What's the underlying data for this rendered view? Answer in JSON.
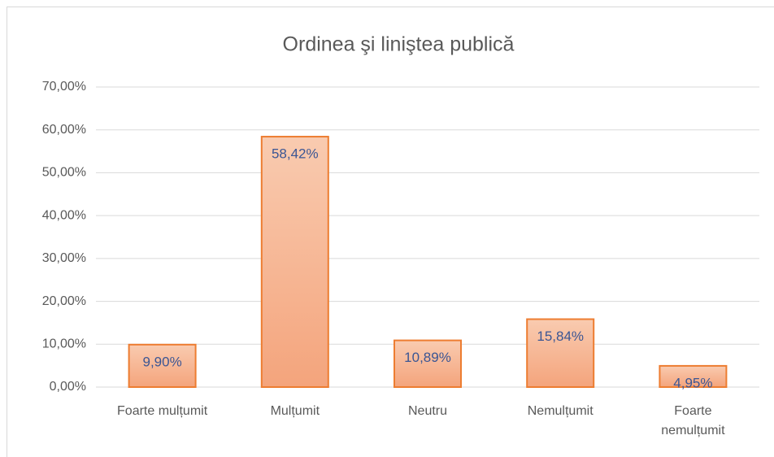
{
  "chart_data": {
    "type": "bar",
    "title": "Ordinea şi liniştea publică",
    "categories": [
      "Foarte mulțumit",
      "Mulțumit",
      "Neutru",
      "Nemulțumit",
      "Foarte nemulțumit"
    ],
    "values": [
      9.9,
      58.42,
      10.89,
      15.84,
      4.95
    ],
    "value_labels": [
      "9,90%",
      "58,42%",
      "10,89%",
      "15,84%",
      "4,95%"
    ],
    "color": "#ed7d31",
    "ylim": [
      0,
      70
    ],
    "yticks": [
      {
        "value": 0,
        "label": "0,00%"
      },
      {
        "value": 10,
        "label": "10,00%"
      },
      {
        "value": 20,
        "label": "20,00%"
      },
      {
        "value": 30,
        "label": "30,00%"
      },
      {
        "value": 40,
        "label": "40,00%"
      },
      {
        "value": 50,
        "label": "50,00%"
      },
      {
        "value": 60,
        "label": "60,00%"
      },
      {
        "value": 70,
        "label": "70,00%"
      }
    ],
    "grid": true
  }
}
